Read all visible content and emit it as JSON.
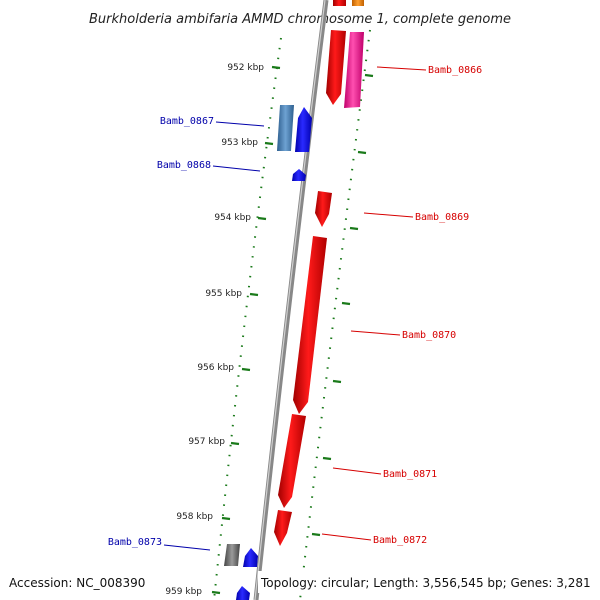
{
  "title": "Burkholderia ambifaria AMMD chromosome 1, complete genome",
  "footer": {
    "accession": "Accession: NC_008390",
    "topology": "Topology: circular; Length: 3,556,545 bp; Genes: 3,281"
  },
  "ticks": [
    "952 kbp",
    "953 kbp",
    "954 kbp",
    "955 kbp",
    "956 kbp",
    "957 kbp",
    "958 kbp",
    "959 kbp"
  ],
  "genes": [
    {
      "label": "Bamb_0866",
      "strand": "+",
      "color": "#d60000"
    },
    {
      "label": "Bamb_0867",
      "strand": "-",
      "color": "#0000aa"
    },
    {
      "label": "Bamb_0868",
      "strand": "-",
      "color": "#0000aa"
    },
    {
      "label": "Bamb_0869",
      "strand": "+",
      "color": "#d60000"
    },
    {
      "label": "Bamb_0870",
      "strand": "+",
      "color": "#d60000"
    },
    {
      "label": "Bamb_0871",
      "strand": "+",
      "color": "#d60000"
    },
    {
      "label": "Bamb_0872",
      "strand": "+",
      "color": "#d60000"
    },
    {
      "label": "Bamb_0873",
      "strand": "-",
      "color": "#0000aa"
    }
  ],
  "colors": {
    "forward_gene": "#ff0000",
    "reverse_gene": "#0000ff",
    "backbone": "#888888",
    "tick": "#1a7a1a"
  }
}
